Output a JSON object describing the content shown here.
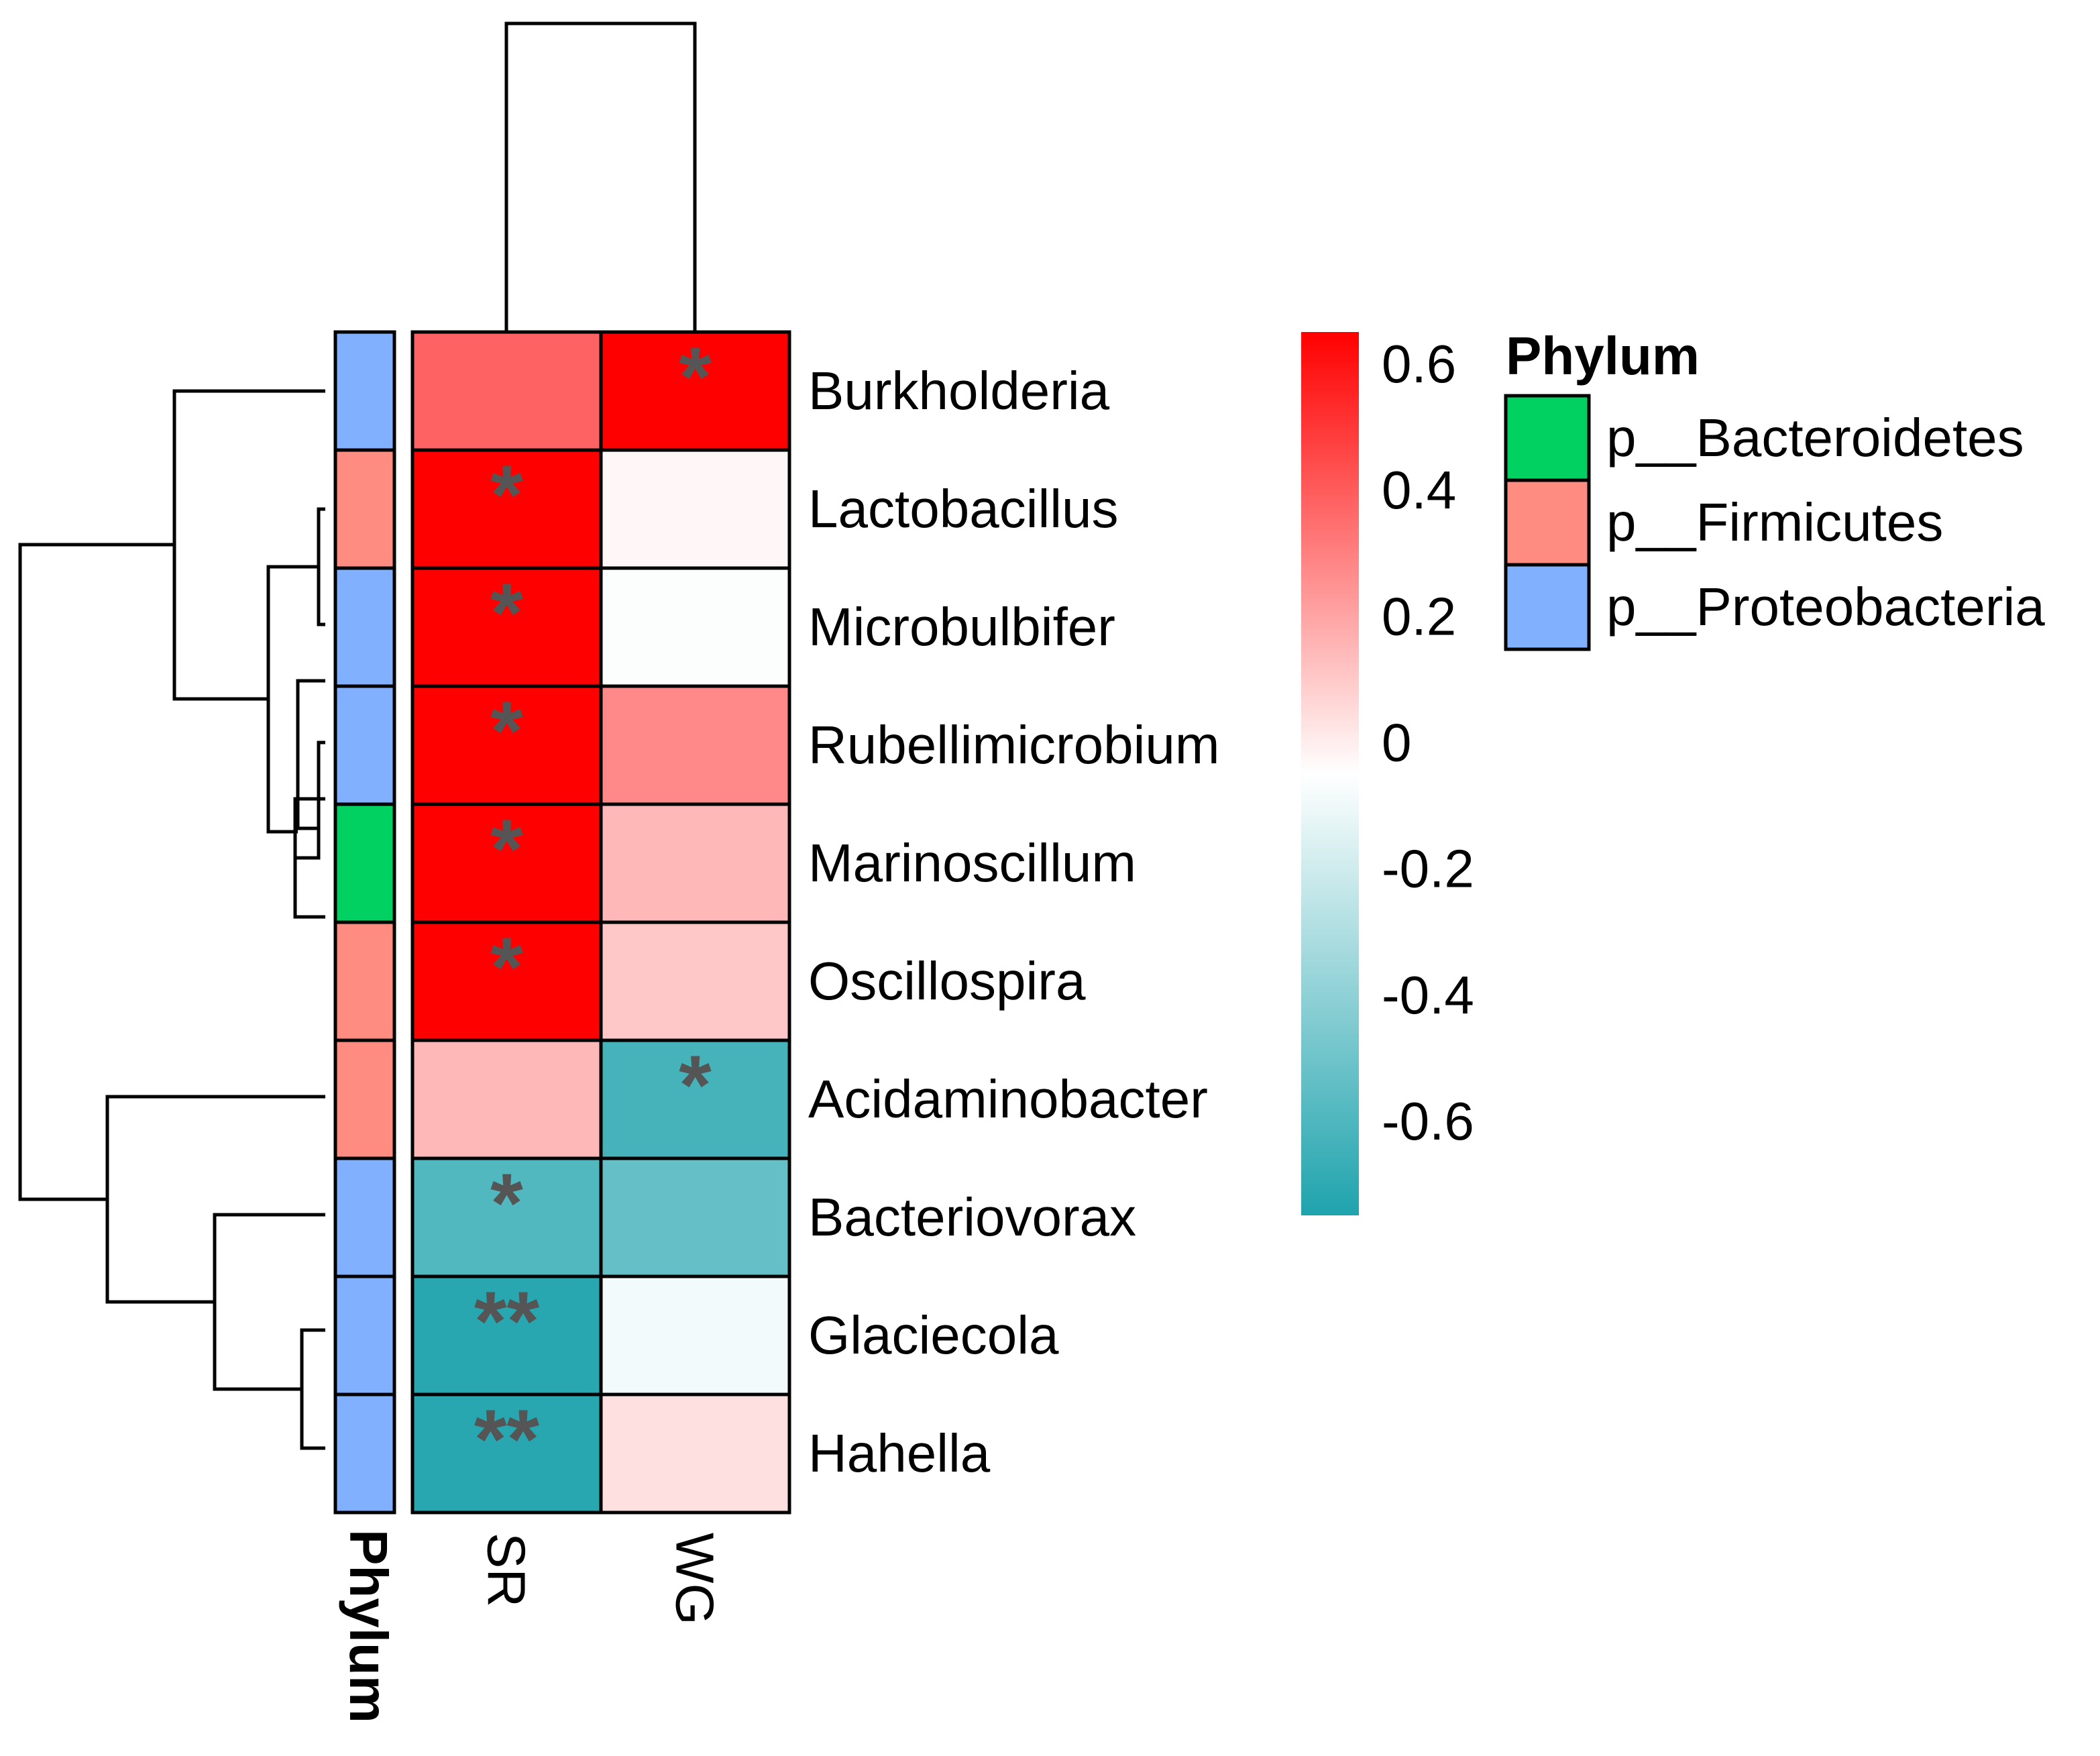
{
  "chart_data": {
    "type": "heatmap",
    "title": "",
    "rows": [
      "Burkholderia",
      "Lactobacillus",
      "Microbulbifer",
      "Rubellimicrobium",
      "Marinoscillum",
      "Oscillospira",
      "Acidaminobacter",
      "Bacteriovorax",
      "Glaciecola",
      "Hahella"
    ],
    "columns": [
      "SR",
      "WG"
    ],
    "values": [
      [
        0.4,
        0.66
      ],
      [
        0.66,
        0.02
      ],
      [
        0.66,
        -0.01
      ],
      [
        0.68,
        0.3
      ],
      [
        0.69,
        0.18
      ],
      [
        0.68,
        0.14
      ],
      [
        0.18,
        -0.62
      ],
      [
        -0.58,
        -0.52
      ],
      [
        -0.72,
        -0.04
      ],
      [
        -0.72,
        0.08
      ]
    ],
    "significance": [
      [
        "",
        "*"
      ],
      [
        "*",
        ""
      ],
      [
        "*",
        ""
      ],
      [
        "*",
        ""
      ],
      [
        "*",
        ""
      ],
      [
        "*",
        ""
      ],
      [
        "",
        "*"
      ],
      [
        "*",
        ""
      ],
      [
        "**",
        ""
      ],
      [
        "**",
        ""
      ]
    ],
    "row_annotation": {
      "title": "Phylum",
      "values": [
        "p__Proteobacteria",
        "p__Firmicutes",
        "p__Proteobacteria",
        "p__Proteobacteria",
        "p__Bacteroidetes",
        "p__Firmicutes",
        "p__Firmicutes",
        "p__Proteobacteria",
        "p__Proteobacteria",
        "p__Proteobacteria"
      ]
    },
    "color_scale": {
      "min": -0.75,
      "max": 0.65,
      "low_color": "#1fa3ad",
      "mid_color": "#ffffff",
      "high_color": "#ff0000",
      "ticks": [
        0.6,
        0.4,
        0.2,
        0,
        -0.2,
        -0.4,
        -0.6
      ],
      "tick_labels": [
        "0.6",
        "0.4",
        "0.2",
        "0",
        "-0.2",
        "-0.4",
        "-0.6"
      ]
    }
  },
  "legend": {
    "title": "Phylum",
    "items": [
      {
        "label": "p__Bacteroidetes",
        "color": "#00d161"
      },
      {
        "label": "p__Firmicutes",
        "color": "#ff8c80"
      },
      {
        "label": "p__Proteobacteria",
        "color": "#80b0ff"
      }
    ]
  },
  "annotation_axis_label": "Phylum"
}
